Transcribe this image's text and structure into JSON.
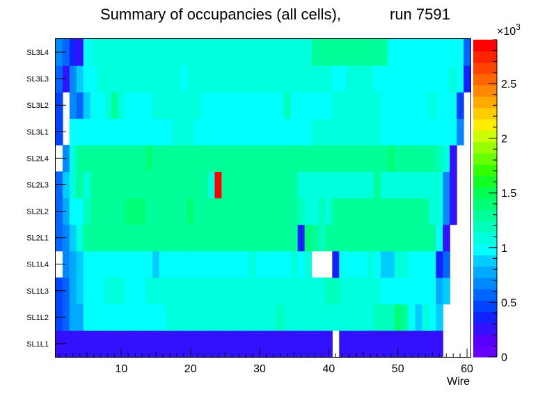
{
  "chart_data": {
    "type": "heatmap",
    "title_main": "Summary of occupancies (all cells),",
    "title_run": "run 7591",
    "xlabel": "Wire",
    "xlim": [
      0.5,
      60.5
    ],
    "xticks": [
      10,
      20,
      30,
      40,
      50,
      60
    ],
    "x_tick_labels": [
      "10",
      "20",
      "30",
      "40",
      "50",
      "60"
    ],
    "layers": [
      "SL1L1",
      "SL1L2",
      "SL1L3",
      "SL1L4",
      "SL2L1",
      "SL2L2",
      "SL2L3",
      "SL2L4",
      "SL3L1",
      "SL3L2",
      "SL3L3",
      "SL3L4"
    ],
    "zlim": [
      0,
      2900
    ],
    "z_exponent_label": "×10",
    "z_exponent_power": "3",
    "z_ticks": [
      0,
      500,
      1000,
      1500,
      2000,
      2500
    ],
    "z_tick_labels": [
      "0",
      "0.5",
      "1",
      "1.5",
      "2",
      "2.5"
    ],
    "palette": [
      "#6600ff",
      "#5500ff",
      "#3311ff",
      "#1122ff",
      "#0044ff",
      "#0066ff",
      "#0088ff",
      "#00aaff",
      "#00ccff",
      "#00ffff",
      "#00ffdd",
      "#00ffbb",
      "#00ff99",
      "#00ff77",
      "#00ff55",
      "#11ff22",
      "#33ff00",
      "#66ff00",
      "#99ff00",
      "#ccff00",
      "#ffee00",
      "#ffcc00",
      "#ffaa00",
      "#ff8800",
      "#ff6600",
      "#ff4400",
      "#ff2200",
      "#ff0000"
    ],
    "values": [
      [
        300,
        300,
        300,
        300,
        300,
        300,
        300,
        300,
        300,
        300,
        300,
        300,
        300,
        300,
        300,
        300,
        300,
        300,
        300,
        300,
        300,
        300,
        300,
        300,
        300,
        300,
        300,
        300,
        300,
        300,
        300,
        300,
        300,
        300,
        300,
        300,
        300,
        300,
        300,
        300,
        null,
        300,
        300,
        300,
        300,
        300,
        300,
        300,
        300,
        300,
        300,
        300,
        300,
        300,
        300,
        300,
        null,
        null,
        null,
        null
      ],
      [
        500,
        600,
        750,
        800,
        1000,
        1000,
        1000,
        1000,
        1000,
        1000,
        1000,
        1000,
        1000,
        1000,
        1000,
        1000,
        1100,
        1100,
        1100,
        1100,
        1100,
        1100,
        1100,
        1100,
        1100,
        1100,
        1100,
        1100,
        1100,
        1100,
        1100,
        1100,
        1150,
        1100,
        1100,
        1100,
        1100,
        1100,
        1100,
        1100,
        1100,
        1100,
        1100,
        1100,
        1100,
        1100,
        1150,
        1150,
        1200,
        1400,
        1250,
        1000,
        900,
        1100,
        950,
        850,
        null,
        null,
        null,
        null
      ],
      [
        500,
        600,
        800,
        900,
        950,
        1000,
        1000,
        1050,
        1050,
        1050,
        1000,
        1000,
        1000,
        1050,
        1050,
        1050,
        1050,
        1050,
        1100,
        1100,
        1050,
        1050,
        1050,
        1050,
        1050,
        1100,
        1050,
        1050,
        1100,
        1100,
        1100,
        1100,
        1100,
        1100,
        1100,
        1100,
        1100,
        1100,
        1100,
        1150,
        1150,
        1100,
        1100,
        1100,
        1100,
        1100,
        1100,
        1000,
        1000,
        1000,
        1000,
        1000,
        1000,
        1000,
        950,
        750,
        850,
        null,
        null,
        null
      ],
      [
        null,
        650,
        800,
        850,
        950,
        1000,
        1000,
        1000,
        1000,
        1000,
        1000,
        1000,
        1000,
        1000,
        900,
        1000,
        1000,
        1000,
        1000,
        1000,
        1000,
        1000,
        1000,
        1000,
        1000,
        1000,
        1000,
        1000,
        1100,
        1000,
        1000,
        1000,
        1000,
        1000,
        1050,
        1000,
        1100,
        null,
        null,
        null,
        400,
        1000,
        1000,
        950,
        1000,
        1050,
        1000,
        900,
        850,
        1050,
        1050,
        950,
        950,
        950,
        950,
        350,
        600,
        null,
        null,
        null
      ],
      [
        600,
        700,
        900,
        1100,
        1250,
        1250,
        1250,
        1250,
        1250,
        1250,
        1250,
        1250,
        1250,
        1250,
        1250,
        1250,
        1250,
        1250,
        1250,
        1250,
        1250,
        1250,
        1250,
        1250,
        1250,
        1250,
        1250,
        1250,
        1250,
        1250,
        1250,
        1250,
        1250,
        1250,
        1250,
        350,
        1350,
        1250,
        1150,
        1300,
        1250,
        1250,
        1250,
        1250,
        1250,
        1250,
        1250,
        1250,
        1250,
        1250,
        1250,
        1250,
        1250,
        1250,
        1250,
        1000,
        300,
        null,
        null,
        null
      ],
      [
        600,
        800,
        1000,
        1000,
        1150,
        1250,
        1250,
        1250,
        1250,
        1250,
        1350,
        1350,
        1350,
        1300,
        1300,
        1250,
        1250,
        1250,
        1250,
        1350,
        1250,
        1250,
        1250,
        1250,
        1250,
        1250,
        1250,
        1250,
        1250,
        1250,
        1250,
        1250,
        1250,
        1250,
        1250,
        1150,
        1100,
        1050,
        1150,
        1050,
        1250,
        1250,
        1250,
        1250,
        1250,
        1250,
        1250,
        1250,
        1250,
        1250,
        1250,
        1250,
        1250,
        1250,
        1050,
        1050,
        700,
        300,
        null,
        null
      ],
      [
        600,
        900,
        1100,
        1250,
        1100,
        1250,
        1250,
        1250,
        1250,
        1250,
        1250,
        1250,
        1250,
        1300,
        1300,
        1300,
        1300,
        1300,
        1300,
        1300,
        1300,
        1300,
        1100,
        2800,
        1250,
        1250,
        1250,
        1250,
        1250,
        1250,
        1250,
        1250,
        1250,
        1250,
        1250,
        1050,
        1050,
        1050,
        1050,
        1050,
        1050,
        1050,
        1050,
        1050,
        1050,
        1050,
        1250,
        1050,
        1050,
        1050,
        1050,
        1050,
        1050,
        1050,
        1050,
        1050,
        700,
        300,
        null,
        null
      ],
      [
        null,
        700,
        1050,
        1250,
        1250,
        1250,
        1250,
        1250,
        1250,
        1250,
        1250,
        1250,
        1300,
        1350,
        1250,
        1250,
        1250,
        1250,
        1300,
        1250,
        1250,
        1250,
        1250,
        1250,
        1250,
        1250,
        1300,
        1250,
        1250,
        1300,
        1250,
        1250,
        1250,
        1250,
        1250,
        1250,
        1250,
        1250,
        1250,
        1250,
        1250,
        1250,
        1250,
        1250,
        1250,
        1250,
        1250,
        1300,
        1350,
        1250,
        1250,
        1250,
        1250,
        1250,
        1250,
        1150,
        1050,
        300,
        null,
        null
      ],
      [
        450,
        null,
        950,
        950,
        1000,
        1000,
        1000,
        1000,
        1000,
        1000,
        1000,
        1000,
        1000,
        1000,
        1000,
        1000,
        1000,
        1100,
        1050,
        1050,
        1000,
        1000,
        1000,
        1000,
        1000,
        1000,
        1000,
        1000,
        1000,
        1000,
        1000,
        1000,
        1000,
        1000,
        1000,
        1000,
        1000,
        1050,
        1050,
        1050,
        1050,
        1050,
        1050,
        1050,
        1050,
        1050,
        1050,
        1000,
        1000,
        1000,
        1000,
        1000,
        1000,
        950,
        1000,
        1000,
        1000,
        1000,
        700,
        null
      ],
      [
        450,
        null,
        700,
        550,
        850,
        1000,
        1000,
        1050,
        1250,
        1050,
        1000,
        1000,
        1000,
        1000,
        1050,
        1100,
        1100,
        1050,
        1050,
        1050,
        1050,
        1000,
        1000,
        1000,
        1000,
        1000,
        1000,
        1000,
        1000,
        1000,
        1000,
        1000,
        1000,
        1150,
        1000,
        1000,
        1000,
        1000,
        1000,
        1000,
        1050,
        1050,
        1050,
        1050,
        1050,
        1050,
        1050,
        1000,
        1000,
        1000,
        1000,
        1000,
        1000,
        1000,
        1050,
        1000,
        1000,
        1000,
        500,
        null
      ],
      [
        550,
        300,
        650,
        850,
        1000,
        1000,
        1050,
        1050,
        1050,
        1050,
        1050,
        1050,
        1050,
        1050,
        1050,
        1050,
        1050,
        1050,
        950,
        1050,
        1050,
        1050,
        1050,
        1050,
        1050,
        1050,
        1050,
        1050,
        1050,
        1050,
        1050,
        1050,
        1050,
        1050,
        1050,
        1050,
        1050,
        1050,
        1050,
        1050,
        1000,
        1000,
        1050,
        1050,
        1050,
        1050,
        1000,
        1000,
        1000,
        1000,
        1000,
        1000,
        1000,
        1000,
        1000,
        1000,
        1000,
        1050,
        1000,
        400
      ],
      [
        650,
        550,
        400,
        300,
        950,
        1050,
        1050,
        1050,
        1050,
        1050,
        1050,
        1050,
        1050,
        1050,
        1050,
        1050,
        1050,
        1050,
        1050,
        1050,
        1050,
        1050,
        1050,
        1050,
        1050,
        1050,
        1050,
        1050,
        1050,
        1050,
        1050,
        1050,
        1050,
        1050,
        1050,
        1050,
        1050,
        1250,
        1250,
        1250,
        1250,
        1250,
        1250,
        1250,
        1250,
        1250,
        1250,
        1250,
        1000,
        1000,
        1000,
        1000,
        1000,
        1000,
        1000,
        1000,
        1000,
        1000,
        1000,
        550
      ]
    ]
  }
}
